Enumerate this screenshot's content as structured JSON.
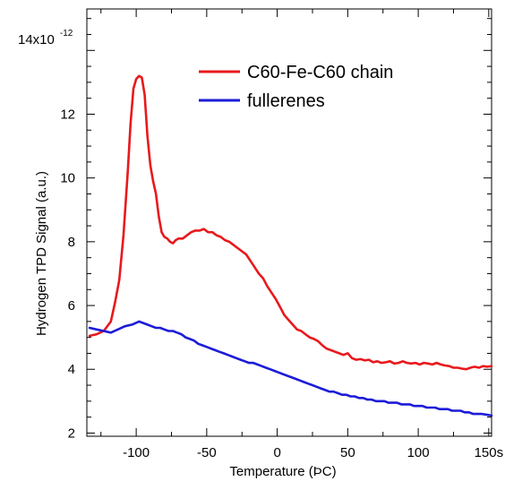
{
  "chart_data": {
    "type": "line",
    "xlabel": "Temperature (ÞC)",
    "ylabel": "Hydrogen TPD Signal (a.u.)",
    "y_multiplier_label": "14x10",
    "y_multiplier_exponent": "-12",
    "xlim": [
      -135,
      152
    ],
    "ylim": [
      1.9,
      15.3
    ],
    "x_ticks": [
      -100,
      -50,
      0,
      50,
      100,
      150
    ],
    "x_tick_labels": [
      "-100",
      "-50",
      "0",
      "50",
      "100",
      "150s"
    ],
    "y_ticks": [
      2,
      4,
      6,
      8,
      10,
      12
    ],
    "y_tick_labels": [
      "2",
      "4",
      "6",
      "8",
      "10",
      "12"
    ],
    "y_top_tick": 14,
    "grid": false,
    "legend_position": "top-right",
    "series": [
      {
        "name": "C60-Fe-C60 chain",
        "color": "#e8191c",
        "x": [
          -133,
          -128,
          -123,
          -118,
          -115,
          -112,
          -109,
          -106,
          -104,
          -102,
          -100,
          -98,
          -96,
          -94,
          -92,
          -90,
          -88,
          -86,
          -84,
          -82,
          -80,
          -78,
          -76,
          -74,
          -72,
          -70,
          -67,
          -64,
          -61,
          -58,
          -55,
          -52,
          -49,
          -46,
          -43,
          -40,
          -37,
          -34,
          -31,
          -28,
          -25,
          -22,
          -19,
          -16,
          -13,
          -10,
          -7,
          -4,
          -1,
          2,
          5,
          8,
          11,
          14,
          17,
          20,
          23,
          26,
          29,
          32,
          35,
          38,
          41,
          44,
          47,
          50,
          53,
          56,
          59,
          62,
          65,
          68,
          71,
          74,
          77,
          80,
          83,
          86,
          89,
          92,
          95,
          98,
          101,
          104,
          107,
          110,
          113,
          116,
          119,
          122,
          125,
          128,
          131,
          134,
          137,
          140,
          143,
          146,
          149,
          152
        ],
        "y": [
          5.05,
          5.1,
          5.2,
          5.5,
          6.1,
          6.8,
          8.2,
          10.2,
          11.7,
          12.8,
          13.1,
          13.2,
          13.15,
          12.6,
          11.3,
          10.4,
          9.9,
          9.5,
          8.8,
          8.3,
          8.15,
          8.1,
          8.0,
          7.95,
          8.05,
          8.1,
          8.1,
          8.2,
          8.3,
          8.35,
          8.35,
          8.4,
          8.3,
          8.3,
          8.2,
          8.15,
          8.05,
          8.0,
          7.9,
          7.8,
          7.7,
          7.6,
          7.4,
          7.2,
          7.0,
          6.85,
          6.6,
          6.4,
          6.2,
          5.95,
          5.7,
          5.55,
          5.4,
          5.25,
          5.2,
          5.1,
          5.0,
          4.95,
          4.88,
          4.75,
          4.65,
          4.6,
          4.55,
          4.5,
          4.45,
          4.5,
          4.35,
          4.3,
          4.32,
          4.28,
          4.3,
          4.22,
          4.25,
          4.2,
          4.22,
          4.25,
          4.18,
          4.2,
          4.25,
          4.2,
          4.18,
          4.2,
          4.15,
          4.2,
          4.18,
          4.15,
          4.2,
          4.15,
          4.12,
          4.1,
          4.05,
          4.05,
          4.02,
          4.0,
          4.05,
          4.08,
          4.05,
          4.1,
          4.08,
          4.1
        ]
      },
      {
        "name": "fullerenes",
        "color": "#1c1cd8",
        "x": [
          -133,
          -128,
          -123,
          -118,
          -113,
          -108,
          -103,
          -98,
          -95,
          -92,
          -89,
          -86,
          -83,
          -80,
          -77,
          -74,
          -71,
          -68,
          -65,
          -62,
          -59,
          -56,
          -53,
          -50,
          -47,
          -44,
          -41,
          -38,
          -35,
          -32,
          -29,
          -26,
          -23,
          -20,
          -17,
          -14,
          -11,
          -8,
          -5,
          -2,
          1,
          4,
          7,
          10,
          13,
          16,
          19,
          22,
          25,
          28,
          31,
          34,
          37,
          40,
          43,
          46,
          49,
          52,
          55,
          58,
          61,
          64,
          67,
          70,
          73,
          76,
          79,
          82,
          85,
          88,
          91,
          94,
          97,
          100,
          103,
          106,
          109,
          112,
          115,
          118,
          121,
          124,
          127,
          130,
          133,
          136,
          139,
          142,
          145,
          148,
          152
        ],
        "y": [
          5.3,
          5.25,
          5.2,
          5.15,
          5.25,
          5.35,
          5.4,
          5.5,
          5.45,
          5.4,
          5.35,
          5.3,
          5.3,
          5.25,
          5.2,
          5.2,
          5.15,
          5.1,
          5.0,
          4.95,
          4.9,
          4.8,
          4.75,
          4.7,
          4.65,
          4.6,
          4.55,
          4.5,
          4.45,
          4.4,
          4.35,
          4.3,
          4.25,
          4.2,
          4.2,
          4.15,
          4.1,
          4.05,
          4.0,
          3.95,
          3.9,
          3.85,
          3.8,
          3.75,
          3.7,
          3.65,
          3.6,
          3.55,
          3.5,
          3.45,
          3.4,
          3.35,
          3.3,
          3.3,
          3.25,
          3.2,
          3.2,
          3.15,
          3.15,
          3.1,
          3.1,
          3.05,
          3.05,
          3.0,
          3.0,
          3.0,
          2.95,
          2.95,
          2.95,
          2.9,
          2.9,
          2.9,
          2.85,
          2.85,
          2.85,
          2.8,
          2.8,
          2.8,
          2.75,
          2.75,
          2.75,
          2.7,
          2.7,
          2.7,
          2.65,
          2.65,
          2.6,
          2.6,
          2.6,
          2.58,
          2.55
        ]
      }
    ]
  }
}
